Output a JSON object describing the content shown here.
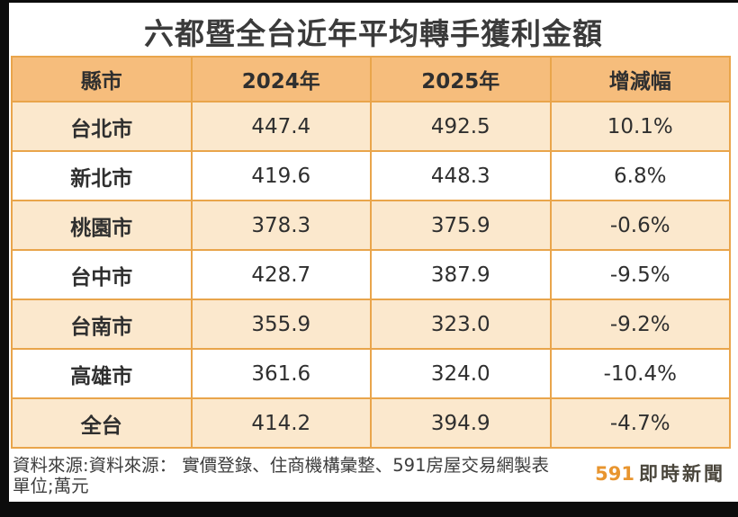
{
  "title": "六都暨全台近年平均轉手獲利金額",
  "table": {
    "headers": [
      "縣市",
      "2024年",
      "2025年",
      "增減幅"
    ],
    "rows": [
      {
        "city": "台北市",
        "y2024": "447.4",
        "y2025": "492.5",
        "change": "10.1%"
      },
      {
        "city": "新北市",
        "y2024": "419.6",
        "y2025": "448.3",
        "change": "6.8%"
      },
      {
        "city": "桃園市",
        "y2024": "378.3",
        "y2025": "375.9",
        "change": "-0.6%"
      },
      {
        "city": "台中市",
        "y2024": "428.7",
        "y2025": "387.9",
        "change": "-9.5%"
      },
      {
        "city": "台南市",
        "y2024": "355.9",
        "y2025": "323.0",
        "change": "-9.2%"
      },
      {
        "city": "高雄市",
        "y2024": "361.6",
        "y2025": "324.0",
        "change": "-10.4%"
      },
      {
        "city": "全台",
        "y2024": "414.2",
        "y2025": "394.9",
        "change": "-4.7%"
      }
    ]
  },
  "footer": {
    "source_line": "資料來源:資料來源：  實價登錄、住商機構彙整、591房屋交易網製表",
    "unit_line": "單位;萬元",
    "logo_number": "591",
    "logo_text": "即時新聞"
  },
  "colors": {
    "header_bg": "#f6bd7c",
    "row_alt_bg": "#fbe8cd",
    "table_border": "#e9a54b",
    "logo_orange": "#e8952f",
    "text_dark": "#2f2f2f"
  }
}
